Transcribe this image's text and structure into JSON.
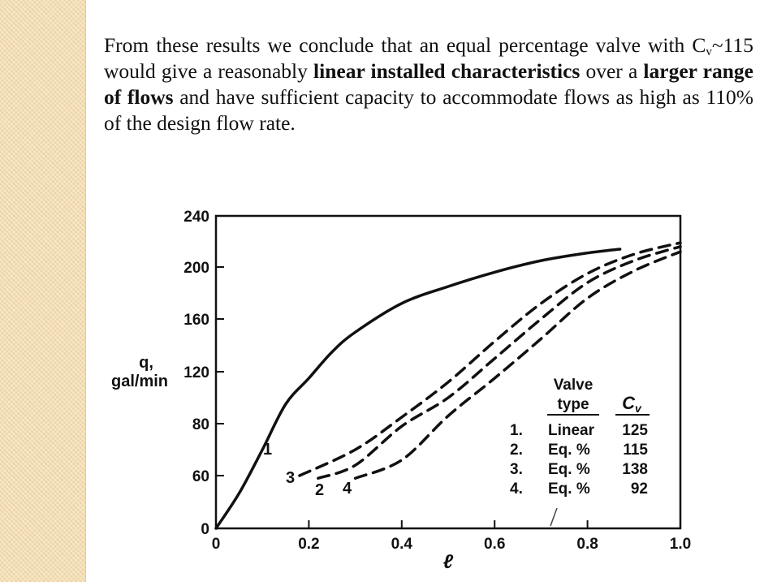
{
  "paragraph": {
    "part1": "From these results we conclude that an equal percentage valve with C",
    "sub": "v",
    "part2": "~115 would give a reasonably ",
    "bold1": "linear installed characteristics",
    "part3": " over a ",
    "bold2": "larger range of flows",
    "part4": " and have sufficient capacity to accommodate flows as high as 110% of the design flow rate."
  },
  "chart_data": {
    "type": "line",
    "xlabel": "ℓ",
    "ylabel": [
      "q,",
      "gal/min"
    ],
    "xlim": [
      0,
      1.0
    ],
    "ylim": [
      0,
      240
    ],
    "x_ticks": [
      0,
      0.2,
      0.4,
      0.6,
      0.8,
      1.0
    ],
    "x_tick_labels": [
      "0",
      "0.2",
      "0.4",
      "0.6",
      "0.8",
      "1.0"
    ],
    "y_tick_labels": [
      "0",
      "60",
      "80",
      "120",
      "160",
      "200",
      "240"
    ],
    "y_ticks_values": [
      0,
      60,
      80,
      120,
      160,
      200,
      240
    ],
    "series": [
      {
        "name": "1",
        "style": "solid",
        "x": [
          0,
          0.05,
          0.1,
          0.15,
          0.2,
          0.25,
          0.3,
          0.4,
          0.5,
          0.6,
          0.7,
          0.8,
          0.87
        ],
        "y": [
          0,
          40,
          70,
          95,
          115,
          135,
          150,
          172,
          185,
          196,
          205,
          211,
          214
        ]
      },
      {
        "name": "2",
        "style": "dashed",
        "x": [
          0.22,
          0.3,
          0.4,
          0.5,
          0.6,
          0.7,
          0.8,
          0.9,
          1.0
        ],
        "y": [
          57,
          64,
          79,
          100,
          130,
          160,
          188,
          205,
          216
        ]
      },
      {
        "name": "3",
        "style": "dashed",
        "x": [
          0.18,
          0.3,
          0.4,
          0.5,
          0.6,
          0.7,
          0.8,
          0.9,
          1.0
        ],
        "y": [
          60,
          70,
          85,
          112,
          143,
          172,
          195,
          210,
          219
        ]
      },
      {
        "name": "4",
        "style": "dashed",
        "x": [
          0.3,
          0.4,
          0.5,
          0.6,
          0.7,
          0.8,
          0.9,
          1.0
        ],
        "y": [
          57,
          66,
          86,
          115,
          145,
          176,
          197,
          212
        ]
      }
    ],
    "legend": {
      "placement": "bottom-right",
      "header_type": [
        "Valve",
        "type"
      ],
      "header_cv": "Cv",
      "rows": [
        {
          "num": "1.",
          "type": "Linear",
          "cv": "125"
        },
        {
          "num": "2.",
          "type": "Eq. %",
          "cv": "115"
        },
        {
          "num": "3.",
          "type": "Eq. %",
          "cv": "138"
        },
        {
          "num": "4.",
          "type": "Eq. %",
          "cv": "92"
        }
      ]
    }
  },
  "colors": {
    "ink": "#111111",
    "strip": "#f3ddb0"
  }
}
